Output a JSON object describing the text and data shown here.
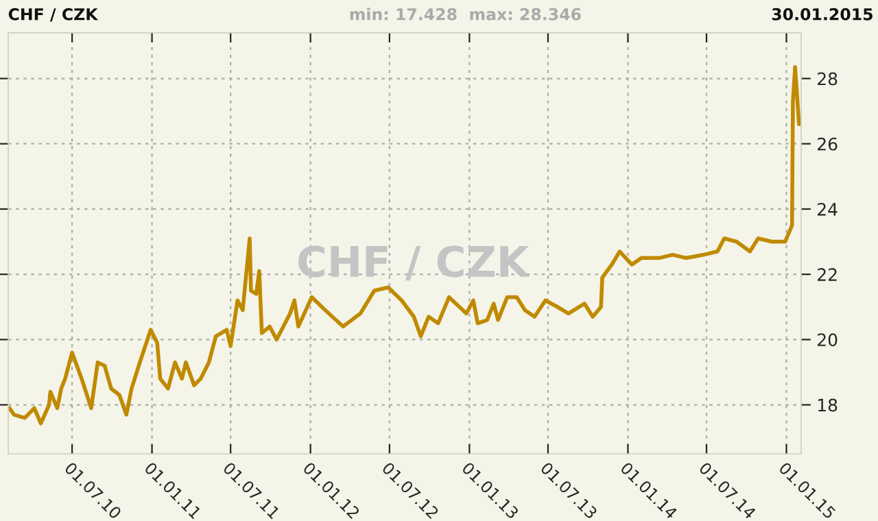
{
  "chart_data": {
    "type": "line",
    "title": "CHF / CZK",
    "annotations": [
      "min: 17.428  max: 28.346",
      "30.01.2015",
      "CHF / CZK"
    ],
    "x": [
      "2010-02-07",
      "2010-02-17",
      "2010-03-14",
      "2010-04-05",
      "2010-04-20",
      "2010-05-09",
      "2010-05-12",
      "2010-05-28",
      "2010-06-06",
      "2010-06-15",
      "2010-07-01",
      "2010-07-23",
      "2010-08-14",
      "2010-08-29",
      "2010-09-14",
      "2010-09-29",
      "2010-10-18",
      "2010-11-03",
      "2010-11-15",
      "2010-12-04",
      "2010-12-29",
      "2011-01-13",
      "2011-01-20",
      "2011-02-07",
      "2011-02-23",
      "2011-03-11",
      "2011-03-20",
      "2011-04-08",
      "2011-04-23",
      "2011-05-12",
      "2011-05-28",
      "2011-06-22",
      "2011-07-01",
      "2011-07-17",
      "2011-07-29",
      "2011-08-14",
      "2011-08-17",
      "2011-08-29",
      "2011-09-05",
      "2011-09-11",
      "2011-09-29",
      "2011-10-15",
      "2011-11-15",
      "2011-11-25",
      "2011-12-04",
      "2012-01-04",
      "2012-02-04",
      "2012-03-16",
      "2012-04-25",
      "2012-05-27",
      "2012-06-28",
      "2012-07-29",
      "2012-08-26",
      "2012-09-11",
      "2012-09-29",
      "2012-10-21",
      "2012-11-15",
      "2012-12-25",
      "2013-01-10",
      "2013-01-20",
      "2013-02-11",
      "2013-02-26",
      "2013-03-08",
      "2013-03-29",
      "2013-04-20",
      "2013-05-09",
      "2013-05-31",
      "2013-06-25",
      "2013-07-23",
      "2013-08-17",
      "2013-09-23",
      "2013-10-12",
      "2013-10-31",
      "2013-11-03",
      "2013-11-25",
      "2013-12-13",
      "2014-01-10",
      "2014-02-01",
      "2014-03-14",
      "2014-04-14",
      "2014-05-15",
      "2014-06-25",
      "2014-07-26",
      "2014-08-11",
      "2014-09-08",
      "2014-10-09",
      "2014-10-28",
      "2014-11-28",
      "2014-12-29",
      "2015-01-14",
      "2015-01-16",
      "2015-01-21",
      "2015-01-25",
      "2015-01-30"
    ],
    "series": [
      {
        "color": "#c08a00",
        "values": [
          17.9,
          17.7,
          17.6,
          17.9,
          17.43,
          18.0,
          18.4,
          17.9,
          18.5,
          18.8,
          19.6,
          18.8,
          17.9,
          19.3,
          19.2,
          18.5,
          18.3,
          17.7,
          18.5,
          19.3,
          20.3,
          19.9,
          18.8,
          18.5,
          19.3,
          18.8,
          19.3,
          18.6,
          18.8,
          19.3,
          20.1,
          20.3,
          19.8,
          21.2,
          20.9,
          23.1,
          21.5,
          21.4,
          22.1,
          20.2,
          20.4,
          20.0,
          20.8,
          21.2,
          20.4,
          21.3,
          20.9,
          20.4,
          20.8,
          21.5,
          21.6,
          21.2,
          20.7,
          20.1,
          20.7,
          20.5,
          21.3,
          20.8,
          21.2,
          20.5,
          20.6,
          21.1,
          20.6,
          21.3,
          21.3,
          20.9,
          20.7,
          21.2,
          21.0,
          20.8,
          21.1,
          20.7,
          21.0,
          21.9,
          22.3,
          22.7,
          22.3,
          22.5,
          22.5,
          22.6,
          22.5,
          22.6,
          22.7,
          23.1,
          23.0,
          22.7,
          23.1,
          23.0,
          23.0,
          23.5,
          27.3,
          28.35,
          27.6,
          26.6
        ]
      }
    ],
    "xlim": [
      "2010-02-04",
      "2015-02-04"
    ],
    "xticks": [
      {
        "value": "2010-07-01",
        "label": "01.07.10"
      },
      {
        "value": "2011-01-01",
        "label": "01.01.11"
      },
      {
        "value": "2011-07-01",
        "label": "01.07.11"
      },
      {
        "value": "2012-01-01",
        "label": "01.01.12"
      },
      {
        "value": "2012-07-01",
        "label": "01.07.12"
      },
      {
        "value": "2013-01-01",
        "label": "01.01.13"
      },
      {
        "value": "2013-07-01",
        "label": "01.07.13"
      },
      {
        "value": "2014-01-01",
        "label": "01.01.14"
      },
      {
        "value": "2014-07-01",
        "label": "01.07.14"
      },
      {
        "value": "2015-01-01",
        "label": "01.01.15"
      }
    ],
    "ylim": [
      16.5,
      29.4
    ],
    "yticks": [
      18,
      20,
      22,
      24,
      26,
      28
    ],
    "grid": true,
    "legend": false,
    "marker": "none",
    "line_style": "solid"
  }
}
